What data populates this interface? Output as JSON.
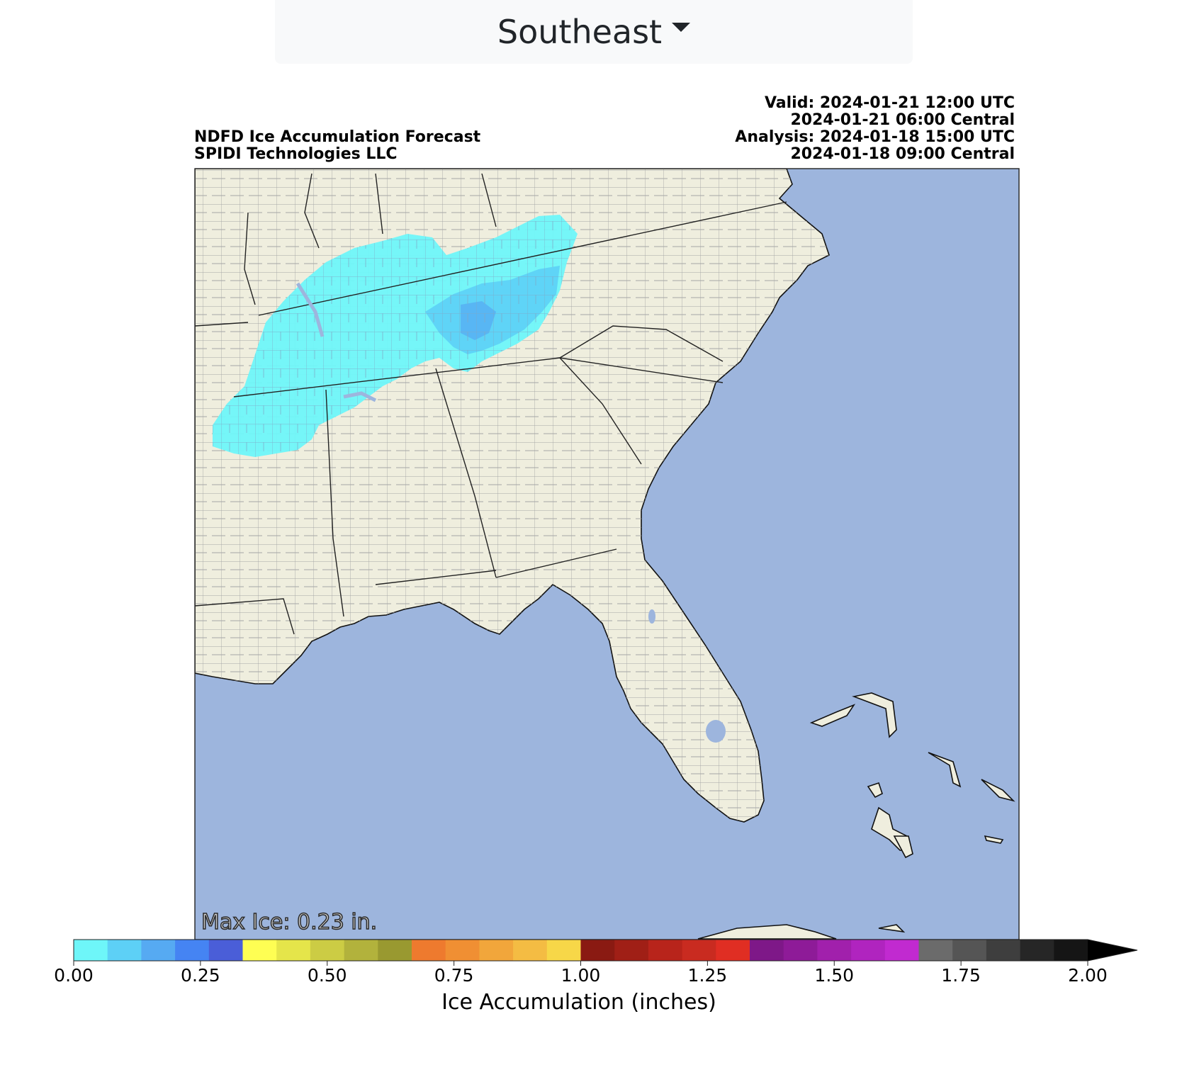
{
  "region_selector": {
    "label": "Southeast"
  },
  "map": {
    "title_left": [
      "NDFD Ice Accumulation Forecast",
      "SPIDI Technologies LLC"
    ],
    "title_right": [
      "Valid: 2024-01-21 12:00 UTC",
      "2024-01-21 06:00 Central",
      "Analysis: 2024-01-18 15:00 UTC",
      "2024-01-18 09:00 Central"
    ],
    "max_ice_label": "Max Ice: 0.23 in.",
    "colors": {
      "land": "#efeede",
      "water": "#9db5dd",
      "ice_light": "#6ef6f9",
      "ice_mid": "#5dd0f6",
      "ice_deep": "#56aaf2",
      "county_lines": "#a6a6a6",
      "state_lines": "#222222"
    }
  },
  "colorbar": {
    "title": "Ice Accumulation (inches)",
    "tick_labels": [
      "0.00",
      "0.25",
      "0.50",
      "0.75",
      "1.00",
      "1.25",
      "1.50",
      "1.75",
      "2.00"
    ],
    "range": [
      0,
      2.0
    ],
    "extend": "max",
    "colors": [
      "#6ef6f9",
      "#5dd0f6",
      "#56aaf2",
      "#4584f3",
      "#4a5ed8",
      "#fefe53",
      "#e5e54a",
      "#cccc44",
      "#b2b23c",
      "#999930",
      "#ee7a2e",
      "#f08f33",
      "#f1a63b",
      "#f4bc43",
      "#f7d748",
      "#8a1a12",
      "#a01f16",
      "#b8241b",
      "#c92b20",
      "#e02e23",
      "#7e1888",
      "#8e1b98",
      "#a120ac",
      "#b024bf",
      "#c12ad0",
      "#6b6b6b",
      "#555555",
      "#3e3e3e",
      "#262626",
      "#151515"
    ],
    "extend_color": "#000000"
  }
}
